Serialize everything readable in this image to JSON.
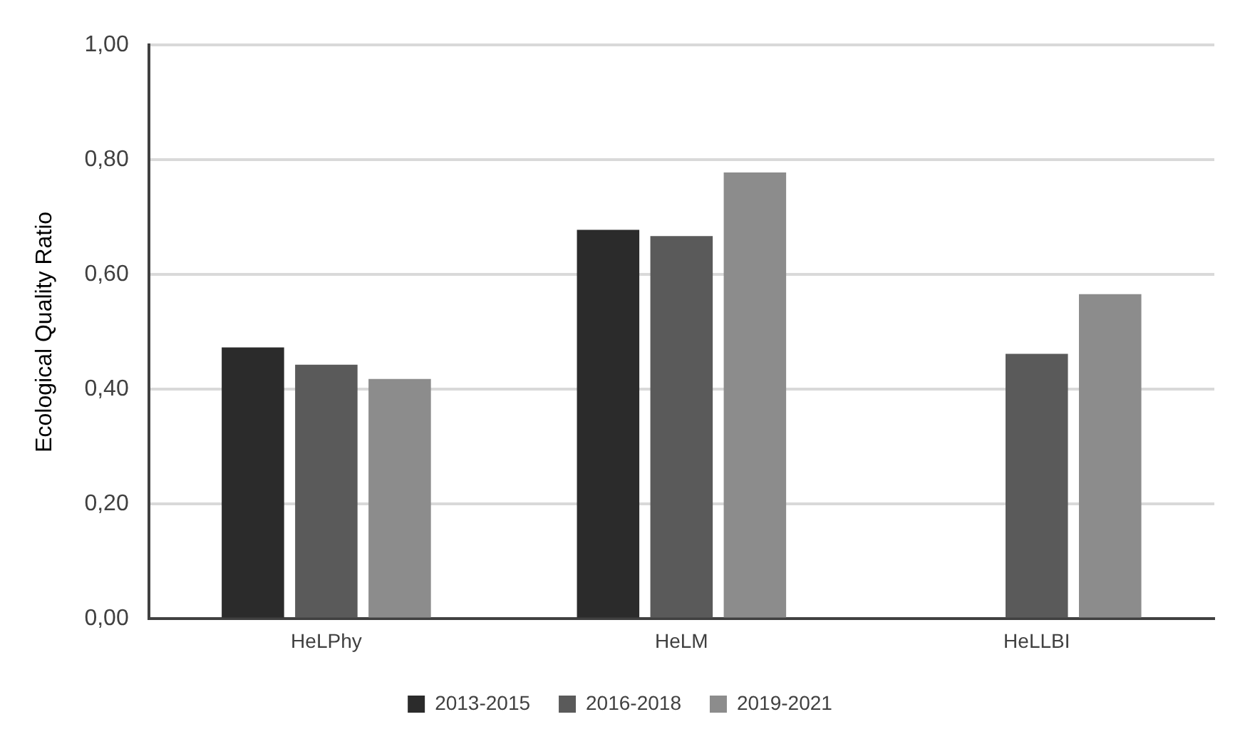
{
  "chart_data": {
    "type": "bar",
    "ylabel": "Ecological Quality Ratio",
    "categories": [
      "HeLPhy",
      "HeLM",
      "HeLLBI"
    ],
    "series": [
      {
        "name": "2013-2015",
        "color": "#2b2b2b",
        "values": [
          0.473,
          0.678,
          null
        ]
      },
      {
        "name": "2016-2018",
        "color": "#5a5a5a",
        "values": [
          0.443,
          0.667,
          0.462
        ]
      },
      {
        "name": "2019-2021",
        "color": "#8c8c8c",
        "values": [
          0.418,
          0.778,
          0.566
        ]
      }
    ],
    "ylim": [
      0,
      1
    ],
    "yticks": [
      {
        "value": 0,
        "label": "0,00"
      },
      {
        "value": 0.2,
        "label": "0,20"
      },
      {
        "value": 0.4,
        "label": "0,40"
      },
      {
        "value": 0.6,
        "label": "0,60"
      },
      {
        "value": 0.8,
        "label": "0,80"
      },
      {
        "value": 1,
        "label": "1,00"
      }
    ],
    "grid": "y",
    "legend": "bottom"
  }
}
